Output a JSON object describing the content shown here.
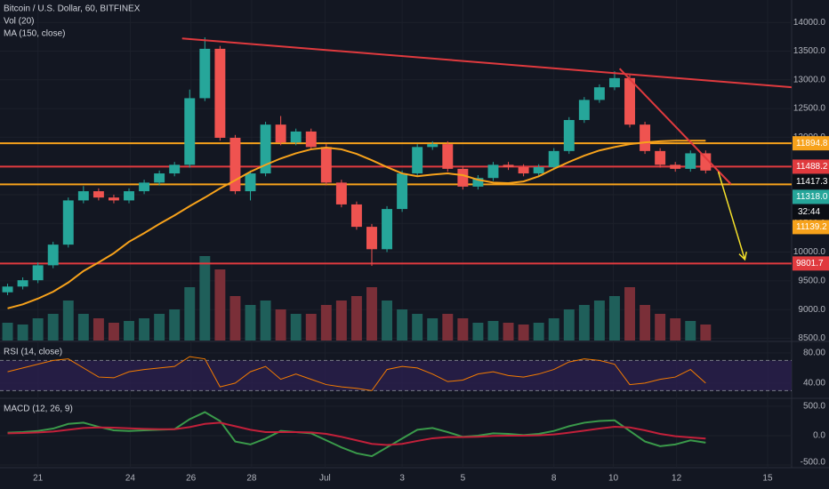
{
  "chart_data": [
    {
      "type": "candlestick",
      "title": "Bitcoin / U.S. Dollar, 60, BITFINEX",
      "indicators": [
        "Vol (20)",
        "MA (150, close)"
      ],
      "x": [
        0,
        12,
        24,
        36,
        48,
        60,
        72,
        84,
        96,
        108,
        120,
        132,
        144,
        156,
        168,
        180,
        192,
        204,
        216,
        228,
        240,
        252,
        264,
        276,
        288,
        300,
        312,
        324,
        336,
        348,
        360,
        372,
        384,
        396,
        408,
        420,
        432,
        444,
        456,
        468,
        480,
        492,
        504,
        516,
        528,
        540,
        552
      ],
      "open": [
        9300,
        9400,
        9510,
        9770,
        10130,
        10900,
        11060,
        10950,
        10900,
        11060,
        11210,
        11370,
        11520,
        12680,
        13540,
        11990,
        11060,
        11370,
        12220,
        11910,
        12100,
        11830,
        11210,
        10830,
        10440,
        10050,
        10750,
        11370,
        11830,
        11880,
        11450,
        11140,
        11290,
        11520,
        11480,
        11370,
        11480,
        11760,
        12300,
        12650,
        12870,
        13030,
        12220,
        11760,
        11520,
        11450,
        11720
      ],
      "high": [
        9450,
        9560,
        9820,
        10180,
        10950,
        11150,
        11110,
        11000,
        11110,
        11260,
        11420,
        11570,
        12830,
        13740,
        13590,
        12040,
        11420,
        12270,
        12370,
        12150,
        12150,
        11880,
        11260,
        10880,
        10490,
        10800,
        11420,
        11880,
        11930,
        11930,
        11500,
        11340,
        11570,
        11570,
        11530,
        11530,
        11810,
        12350,
        12700,
        12920,
        13150,
        13080,
        12270,
        11810,
        11570,
        11770,
        11770
      ],
      "low": [
        9250,
        9350,
        9460,
        9720,
        10080,
        10850,
        10900,
        10850,
        10850,
        11010,
        11160,
        11320,
        11470,
        12630,
        11940,
        11010,
        10900,
        11320,
        11860,
        11860,
        11780,
        11160,
        10780,
        10390,
        9760,
        10000,
        10700,
        11320,
        11780,
        11400,
        11090,
        11090,
        11240,
        11430,
        11320,
        11320,
        11430,
        11710,
        12250,
        12600,
        12820,
        12170,
        11710,
        11470,
        11400,
        11400,
        11370
      ],
      "close": [
        9400,
        9510,
        9770,
        10130,
        10900,
        11060,
        10950,
        10900,
        11060,
        11210,
        11370,
        11520,
        12680,
        13540,
        11990,
        11060,
        11370,
        12220,
        11910,
        12100,
        11830,
        11210,
        10830,
        10440,
        10050,
        10750,
        11370,
        11830,
        11880,
        11450,
        11140,
        11290,
        11520,
        11480,
        11370,
        11480,
        11760,
        12300,
        12650,
        12870,
        13030,
        12220,
        11760,
        11520,
        11450,
        11720,
        11420
      ],
      "volume": [
        20,
        18,
        25,
        30,
        45,
        30,
        25,
        20,
        22,
        25,
        30,
        35,
        60,
        95,
        80,
        50,
        40,
        45,
        35,
        30,
        30,
        40,
        45,
        50,
        60,
        45,
        35,
        30,
        25,
        30,
        25,
        20,
        22,
        20,
        18,
        20,
        25,
        35,
        40,
        45,
        50,
        60,
        40,
        30,
        25,
        22,
        18
      ],
      "ma": [
        9020,
        9090,
        9190,
        9310,
        9470,
        9670,
        9820,
        9980,
        10180,
        10330,
        10490,
        10640,
        10800,
        10950,
        11110,
        11250,
        11400,
        11520,
        11630,
        11720,
        11790,
        11820,
        11790,
        11710,
        11600,
        11480,
        11370,
        11320,
        11350,
        11370,
        11340,
        11260,
        11210,
        11200,
        11230,
        11320,
        11450,
        11570,
        11680,
        11770,
        11830,
        11880,
        11910,
        11930,
        11940,
        11940,
        11940
      ],
      "up_color": "#26a69a",
      "down_color": "#ef5350",
      "ma_color": "#f7a21b",
      "volume_up_color": "#1f5f5a",
      "volume_down_color": "#7a2f38",
      "xlim": [
        -6,
        620
      ],
      "ylim": [
        8460,
        14390
      ],
      "xticks": [
        {
          "value": 24,
          "label": "21"
        },
        {
          "value": 97,
          "label": "24"
        },
        {
          "value": 145,
          "label": "26"
        },
        {
          "value": 193,
          "label": "28"
        },
        {
          "value": 251,
          "label": "Jul"
        },
        {
          "value": 312,
          "label": "3"
        },
        {
          "value": 360,
          "label": "5"
        },
        {
          "value": 432,
          "label": "8"
        },
        {
          "value": 479,
          "label": "10"
        },
        {
          "value": 529,
          "label": "12"
        },
        {
          "value": 601,
          "label": "15"
        }
      ],
      "yticks": [
        {
          "value": 8500,
          "label": "8500.0"
        },
        {
          "value": 9000,
          "label": "9000.0"
        },
        {
          "value": 9500,
          "label": "9500.0"
        },
        {
          "value": 10000,
          "label": "10000.0"
        },
        {
          "value": 10500,
          "label": "10500.0"
        },
        {
          "value": 11000,
          "label": "11000.0"
        },
        {
          "value": 11500,
          "label": "11500.0"
        },
        {
          "value": 12000,
          "label": "12000.0"
        },
        {
          "value": 12500,
          "label": "12500.0"
        },
        {
          "value": 13000,
          "label": "13000.0"
        },
        {
          "value": 13500,
          "label": "13500.0"
        },
        {
          "value": 14000,
          "label": "14000.0"
        }
      ],
      "grid": true,
      "levels": [
        {
          "value": 11894.8,
          "color": "#f7a21b"
        },
        {
          "value": 11488.2,
          "color": "#e03a3e"
        },
        {
          "value": 11180,
          "color": "#f7a21b"
        },
        {
          "value": 9801.7,
          "color": "#e03a3e"
        }
      ],
      "trendlines": [
        {
          "x": [
            138,
            620
          ],
          "y": [
            13720,
            12870
          ],
          "color": "#e03a3e"
        },
        {
          "x": [
            484,
            572
          ],
          "y": [
            13195,
            11183
          ],
          "color": "#e03a3e"
        }
      ],
      "arrow": {
        "x": [
          562,
          583
        ],
        "y": [
          11400,
          9870
        ],
        "color": "#f5e02a"
      },
      "price_labels": [
        {
          "value": 11894.8,
          "label": "11894.8",
          "color": "#f7a21b"
        },
        {
          "value": 11488.2,
          "label": "11488.2",
          "color": "#e03a3e"
        },
        {
          "value": 11417.3,
          "label": "11417.3",
          "color": "#0b0e14"
        },
        {
          "value": 11318.0,
          "label": "11318.0",
          "color": "#26a69a"
        },
        {
          "value": 11139.2,
          "label": "11139.2",
          "color": "#f7a21b"
        },
        {
          "value": 9801.7,
          "label": "9801.7",
          "color": "#e03a3e"
        }
      ],
      "countdown": "32:44"
    },
    {
      "type": "line",
      "title": "RSI (14, close)",
      "x": [
        0,
        12,
        24,
        36,
        48,
        60,
        72,
        84,
        96,
        108,
        120,
        132,
        144,
        156,
        168,
        180,
        192,
        204,
        216,
        228,
        240,
        252,
        264,
        276,
        288,
        300,
        312,
        324,
        336,
        348,
        360,
        372,
        384,
        396,
        408,
        420,
        432,
        444,
        456,
        468,
        480,
        492,
        504,
        516,
        528,
        540,
        552
      ],
      "series": [
        {
          "name": "RSI",
          "color": "#f57c00",
          "values": [
            55,
            60,
            65,
            70,
            72,
            60,
            48,
            47,
            55,
            58,
            60,
            62,
            75,
            72,
            35,
            40,
            55,
            62,
            45,
            52,
            45,
            38,
            35,
            33,
            30,
            58,
            62,
            60,
            52,
            42,
            44,
            52,
            55,
            50,
            48,
            52,
            58,
            68,
            72,
            70,
            65,
            38,
            40,
            45,
            48,
            58,
            40
          ]
        }
      ],
      "band": [
        30,
        70
      ],
      "band_color": "#2a1f4d",
      "ylim": [
        21,
        94
      ],
      "yticks": [
        {
          "value": 80,
          "label": "80.00"
        },
        {
          "value": 40,
          "label": "40.00"
        }
      ]
    },
    {
      "type": "line",
      "title": "MACD (12, 26, 9)",
      "x": [
        0,
        12,
        24,
        36,
        48,
        60,
        72,
        84,
        96,
        108,
        120,
        132,
        144,
        156,
        168,
        180,
        192,
        204,
        216,
        228,
        240,
        252,
        264,
        276,
        288,
        300,
        312,
        324,
        336,
        348,
        360,
        372,
        384,
        396,
        408,
        420,
        432,
        444,
        456,
        468,
        480,
        492,
        504,
        516,
        528,
        540,
        552
      ],
      "series": [
        {
          "name": "MACD",
          "color": "#3a9a4a",
          "values": [
            50,
            60,
            80,
            120,
            200,
            220,
            150,
            90,
            80,
            90,
            100,
            110,
            280,
            400,
            250,
            -100,
            -150,
            -50,
            80,
            60,
            40,
            -80,
            -200,
            -300,
            -350,
            -200,
            -50,
            100,
            130,
            60,
            -20,
            0,
            40,
            30,
            10,
            30,
            80,
            160,
            220,
            250,
            260,
            80,
            -100,
            -180,
            -150,
            -80,
            -120
          ]
        },
        {
          "name": "Signal",
          "color": "#c2203a",
          "values": [
            40,
            45,
            55,
            70,
            100,
            130,
            140,
            135,
            125,
            115,
            110,
            110,
            145,
            200,
            220,
            160,
            100,
            60,
            60,
            60,
            55,
            30,
            -20,
            -80,
            -140,
            -160,
            -140,
            -90,
            -45,
            -25,
            -25,
            -20,
            -5,
            0,
            0,
            5,
            20,
            50,
            85,
            120,
            150,
            140,
            90,
            30,
            -10,
            -30,
            -50
          ]
        }
      ],
      "ylim": [
        -530,
        620
      ],
      "yticks": [
        {
          "value": 500,
          "label": "500.0"
        },
        {
          "value": 0,
          "label": "0.0"
        },
        {
          "value": -500,
          "label": "-500.0"
        }
      ]
    }
  ]
}
